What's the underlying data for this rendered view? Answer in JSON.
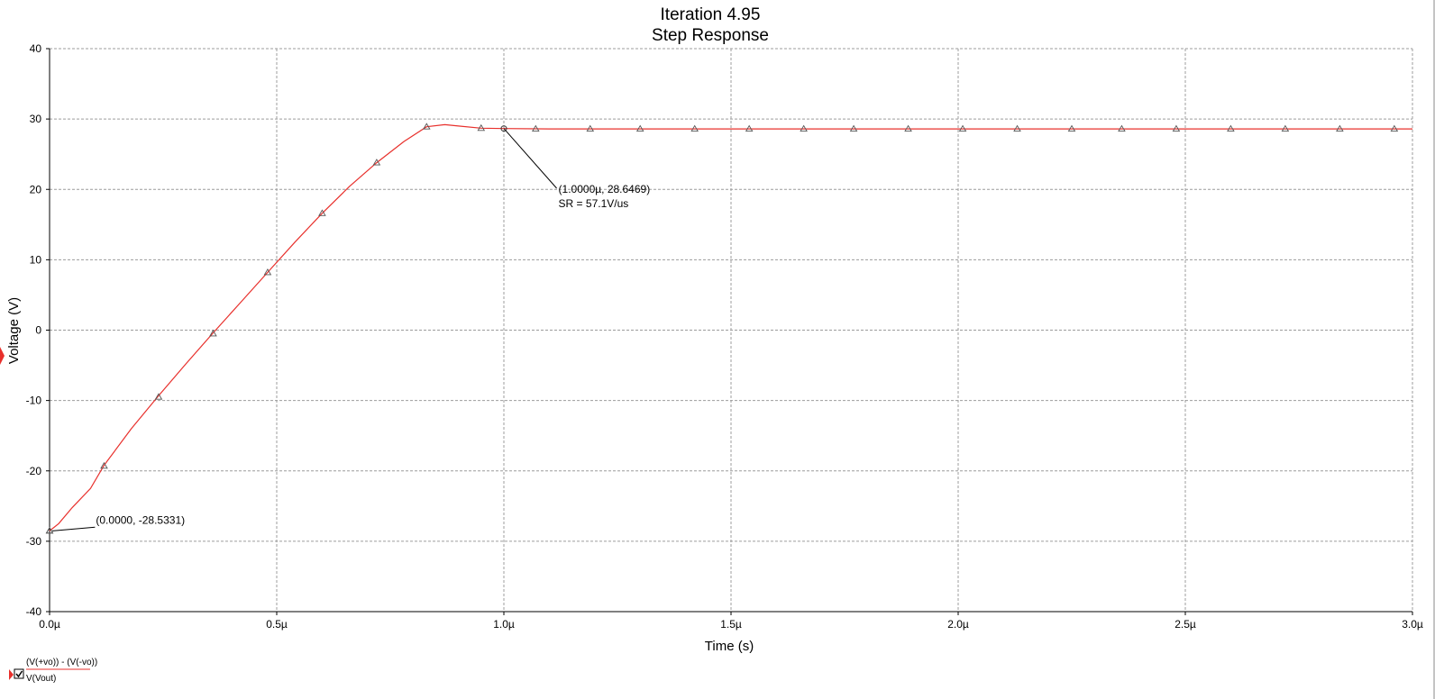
{
  "chart_data": {
    "type": "line",
    "title": "Iteration 4.95",
    "subtitle": "Step Response",
    "xlabel": "Time (s)",
    "ylabel": "Voltage (V)",
    "xlim": [
      0,
      3.0
    ],
    "ylim": [
      -40,
      40
    ],
    "grid": true,
    "x_ticks": [
      {
        "value": 0.0,
        "label": "0.0µ"
      },
      {
        "value": 0.5,
        "label": "0.5µ"
      },
      {
        "value": 1.0,
        "label": "1.0µ"
      },
      {
        "value": 1.5,
        "label": "1.5µ"
      },
      {
        "value": 2.0,
        "label": "2.0µ"
      },
      {
        "value": 2.5,
        "label": "2.5µ"
      },
      {
        "value": 3.0,
        "label": "3.0µ"
      }
    ],
    "y_ticks": [
      {
        "value": 40,
        "label": "40"
      },
      {
        "value": 30,
        "label": "30"
      },
      {
        "value": 20,
        "label": "20"
      },
      {
        "value": 10,
        "label": "10"
      },
      {
        "value": 0,
        "label": "0"
      },
      {
        "value": -10,
        "label": "-10"
      },
      {
        "value": -20,
        "label": "-20"
      },
      {
        "value": -30,
        "label": "-30"
      },
      {
        "value": -40,
        "label": "-40"
      }
    ],
    "series": [
      {
        "color": "#e8302c",
        "x": [
          0.0,
          0.02,
          0.05,
          0.09,
          0.12,
          0.18,
          0.24,
          0.3,
          0.36,
          0.42,
          0.48,
          0.54,
          0.6,
          0.66,
          0.72,
          0.78,
          0.83,
          0.87,
          0.9,
          0.95,
          1.0,
          1.1,
          1.5,
          2.0,
          2.5,
          3.0
        ],
        "y": [
          -28.53,
          -27.5,
          -25.2,
          -22.5,
          -19.2,
          -14.0,
          -9.3,
          -4.8,
          -0.4,
          3.9,
          8.2,
          12.5,
          16.6,
          20.4,
          23.8,
          26.8,
          28.9,
          29.2,
          29.0,
          28.7,
          28.65,
          28.6,
          28.6,
          28.6,
          28.6,
          28.6
        ],
        "markers_x": [
          0.0,
          0.12,
          0.24,
          0.36,
          0.48,
          0.6,
          0.72,
          0.83,
          0.95,
          1.07,
          1.19,
          1.3,
          1.42,
          1.54,
          1.66,
          1.77,
          1.89,
          2.01,
          2.13,
          2.25,
          2.36,
          2.48,
          2.6,
          2.72,
          2.84,
          2.96
        ],
        "markers_y": [
          -28.5,
          -19.3,
          -9.5,
          -0.5,
          8.2,
          16.6,
          23.8,
          28.9,
          28.7,
          28.6,
          28.6,
          28.6,
          28.6,
          28.6,
          28.6,
          28.6,
          28.6,
          28.6,
          28.6,
          28.6,
          28.6,
          28.6,
          28.6,
          28.6,
          28.6,
          28.6
        ]
      }
    ],
    "annotations": [
      {
        "x": 0.0,
        "y": -28.5331,
        "lines": [
          "(0.0000, -28.5331)"
        ],
        "leader_to": [
          0.1,
          -28.0
        ]
      },
      {
        "x": 1.0,
        "y": 28.6469,
        "lines": [
          "(1.0000µ, 28.6469)",
          "SR = 57.1V/us"
        ],
        "leader_to": [
          1.14,
          20.8
        ]
      }
    ],
    "legend": {
      "placement": "bottom-left",
      "entries": [
        "(V(+vo)) - (V(-vo))",
        "V(Vout)"
      ]
    }
  }
}
